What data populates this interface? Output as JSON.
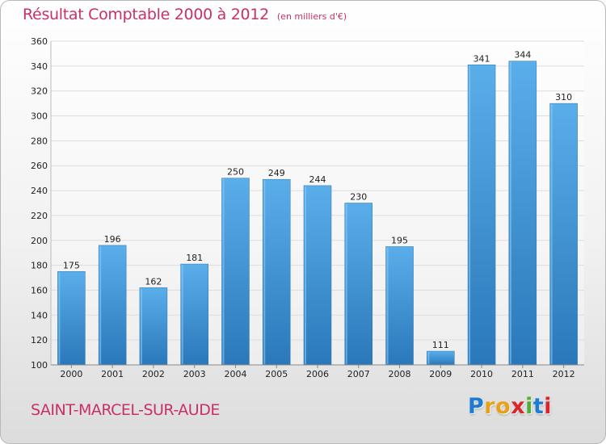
{
  "header": {
    "title": "Résultat Comptable 2000 à 2012",
    "unit": "(en milliers d'€)"
  },
  "footer": {
    "city": "SAINT-MARCEL-SUR-AUDE",
    "logo_letters": [
      "P",
      "r",
      "o",
      "x",
      "i",
      "t",
      "i"
    ]
  },
  "colors": {
    "bar_top": "#5aaeea",
    "bar_bottom": "#2a78ba",
    "title": "#c8306a",
    "grid": "#dddddd"
  },
  "chart_data": {
    "type": "bar",
    "title": "Résultat Comptable 2000 à 2012",
    "subtitle": "(en milliers d'€)",
    "categories": [
      "2000",
      "2001",
      "2002",
      "2003",
      "2004",
      "2005",
      "2006",
      "2007",
      "2008",
      "2009",
      "2010",
      "2011",
      "2012"
    ],
    "values": [
      175,
      196,
      162,
      181,
      250,
      249,
      244,
      230,
      195,
      111,
      341,
      344,
      310
    ],
    "ylim": [
      100,
      360
    ],
    "yticks": [
      100,
      120,
      140,
      160,
      180,
      200,
      220,
      240,
      260,
      280,
      300,
      320,
      340,
      360
    ],
    "grid": true,
    "data_labels": true,
    "legend": "none"
  }
}
